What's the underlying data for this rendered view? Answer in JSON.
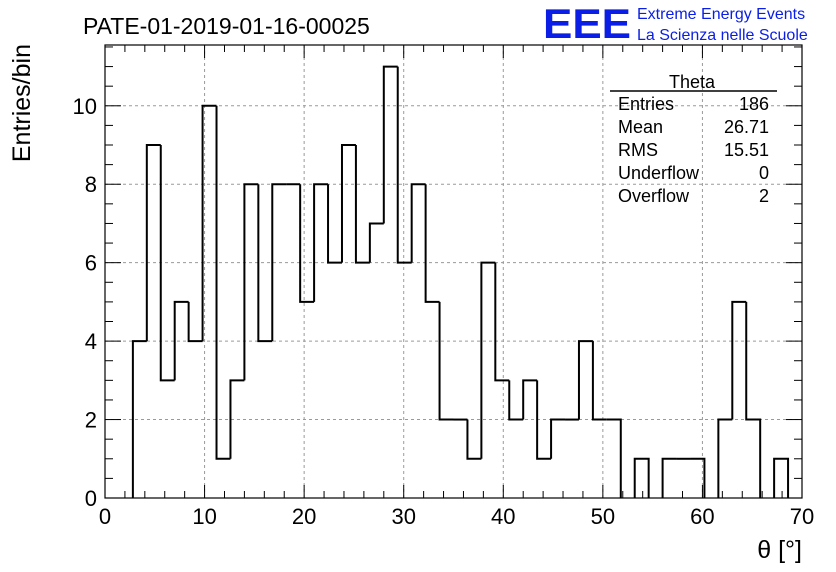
{
  "chart_data": {
    "type": "bar",
    "style": "step-histogram",
    "title": "PATE-01-2019-01-16-00025",
    "xlabel": "θ [°]",
    "ylabel": "Entries/bin",
    "xlim": [
      0,
      70
    ],
    "ylim": [
      0,
      11.55
    ],
    "xticks": [
      0,
      10,
      20,
      30,
      40,
      50,
      60,
      70
    ],
    "yticks": [
      0,
      2,
      4,
      6,
      8,
      10
    ],
    "grid": true,
    "bin_width": 1.4,
    "bin_start": 0,
    "values": [
      0,
      0,
      4,
      9,
      3,
      5,
      4,
      10,
      1,
      3,
      8,
      4,
      8,
      8,
      5,
      8,
      6,
      9,
      6,
      7,
      11,
      6,
      8,
      5,
      2,
      2,
      1,
      6,
      3,
      2,
      3,
      1,
      2,
      2,
      4,
      2,
      2,
      0,
      1,
      0,
      1,
      1,
      1,
      0,
      2,
      5,
      2,
      0,
      1,
      0
    ],
    "color": "#000000"
  },
  "stats": {
    "title": "Theta",
    "rows": [
      {
        "label": "Entries",
        "value": "186"
      },
      {
        "label": "Mean",
        "value": "26.71"
      },
      {
        "label": "RMS",
        "value": "15.51"
      },
      {
        "label": "Underflow",
        "value": "0"
      },
      {
        "label": "Overflow",
        "value": "2"
      }
    ]
  },
  "logo": {
    "letters": "EEE",
    "line1": "Extreme Energy Events",
    "line2": "La Scienza nelle Scuole",
    "color": "#0a1ee6"
  }
}
